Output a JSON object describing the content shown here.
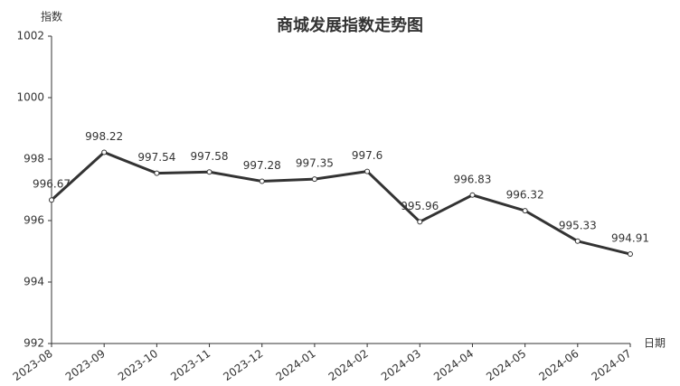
{
  "chart_data": {
    "type": "line",
    "title": "商城发展指数走势图",
    "y_axis_label": "指数",
    "x_axis_label": "日期",
    "categories": [
      "2023-08",
      "2023-09",
      "2023-10",
      "2023-11",
      "2023-12",
      "2024-01",
      "2024-02",
      "2024-03",
      "2024-04",
      "2024-05",
      "2024-06",
      "2024-07"
    ],
    "values": [
      996.67,
      998.22,
      997.54,
      997.58,
      997.28,
      997.35,
      997.6,
      995.96,
      996.83,
      996.32,
      995.33,
      994.91
    ],
    "color": "#333333",
    "ylim": [
      992,
      1002
    ],
    "yticks": [
      992,
      994,
      996,
      998,
      1000,
      1002
    ],
    "grid": false
  }
}
